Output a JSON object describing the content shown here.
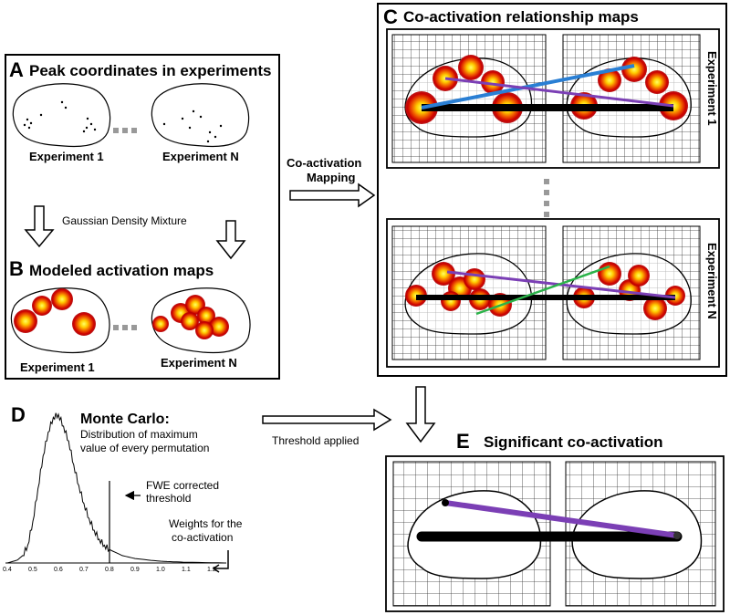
{
  "panelA": {
    "letter": "A",
    "title": "Peak coordinates in experiments",
    "exp_first": "Experiment  1",
    "exp_last": "Experiment N"
  },
  "gaussian_label": "Gaussian Density Mixture",
  "panelB": {
    "letter": "B",
    "title": "Modeled activation maps",
    "exp_first": "Experiment  1",
    "exp_last": "Experiment  N"
  },
  "mapping_label": {
    "line1": "Co-activation",
    "line2": "Mapping"
  },
  "panelC": {
    "letter": "C",
    "title": "Co-activation relationship maps",
    "exp_first": "Experiment  1",
    "exp_last": "Experiment  N"
  },
  "panelD": {
    "letter": "D",
    "title": "Monte Carlo:",
    "desc_line1": "Distribution of maximum",
    "desc_line2": "value of every permutation",
    "fwe_line1": "FWE corrected",
    "fwe_line2": "threshold",
    "weights_line1": "Weights for the",
    "weights_line2": "co-activation"
  },
  "threshold_label": "Threshold applied",
  "panelE": {
    "letter": "E",
    "title": "Significant co-activation"
  },
  "chart_data": {
    "type": "line",
    "title": "",
    "xlabel": "",
    "ylabel": "",
    "xlim": [
      0.4,
      1.25
    ],
    "xticks": [
      "0.4",
      "0.5",
      "0.6",
      "0.7",
      "0.8",
      "0.9",
      "1.0",
      "1.1",
      "1.2"
    ],
    "threshold": 0.8,
    "x": [
      0.4,
      0.44,
      0.46,
      0.48,
      0.5,
      0.52,
      0.54,
      0.56,
      0.58,
      0.6,
      0.62,
      0.64,
      0.66,
      0.68,
      0.7,
      0.72,
      0.74,
      0.76,
      0.78,
      0.8,
      0.85,
      0.9,
      0.95,
      1.0,
      1.05,
      1.1,
      1.2,
      1.25
    ],
    "y": [
      0.0,
      0.02,
      0.05,
      0.12,
      0.28,
      0.5,
      0.72,
      0.88,
      0.98,
      1.0,
      0.92,
      0.82,
      0.66,
      0.52,
      0.4,
      0.3,
      0.22,
      0.16,
      0.12,
      0.09,
      0.05,
      0.03,
      0.02,
      0.012,
      0.008,
      0.005,
      0.002,
      0.0
    ]
  },
  "colors": {
    "blob_outer": "#cc0000",
    "blob_mid": "#ee5500",
    "blob_core": "#ffee00",
    "line_black": "#000000",
    "line_purple": "#7b3fb5",
    "line_blue": "#2a7fd4",
    "line_green": "#2bb34a",
    "separator_gray": "#999999"
  }
}
